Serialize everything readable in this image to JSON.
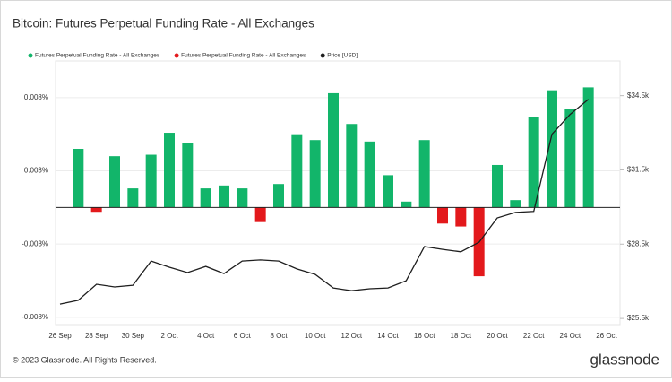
{
  "chart_data": {
    "type": "bar",
    "title": "Bitcoin: Futures Perpetual Funding Rate - All Exchanges",
    "footer": "© 2023 Glassnode. All Rights Reserved.",
    "brand": "glassnode",
    "categories": [
      "26 Sep",
      null,
      "28 Sep",
      null,
      "30 Sep",
      null,
      "2 Oct",
      null,
      "4 Oct",
      null,
      "6 Oct",
      null,
      "8 Oct",
      null,
      "10 Oct",
      null,
      "12 Oct",
      null,
      "14 Oct",
      null,
      "16 Oct",
      null,
      "18 Oct",
      null,
      "20 Oct",
      null,
      "22 Oct",
      null,
      "24 Oct",
      null,
      "26 Oct"
    ],
    "series": [
      {
        "name": "Futures Perpetual Funding Rate - All Exchanges",
        "type": "bar",
        "color": "#12b56a",
        "values": [
          null,
          0.004,
          null,
          0.0035,
          0.0013,
          0.0036,
          0.0051,
          0.0044,
          0.0013,
          0.0015,
          0.0013,
          null,
          0.0016,
          0.005,
          0.0046,
          0.0078,
          0.0057,
          0.0045,
          0.0022,
          0.0004,
          0.0046,
          null,
          null,
          null,
          0.0029,
          0.0005,
          0.0062,
          0.008,
          0.0067,
          0.0082,
          null
        ]
      },
      {
        "name": "Futures Perpetual Funding Rate - All Exchanges",
        "type": "bar",
        "color": "#e3191c",
        "values": [
          null,
          null,
          -0.0003,
          null,
          null,
          null,
          null,
          null,
          null,
          null,
          null,
          -0.001,
          null,
          null,
          null,
          null,
          null,
          null,
          null,
          null,
          null,
          -0.0011,
          -0.0013,
          -0.0047,
          null,
          null,
          null,
          null,
          null,
          null,
          null
        ]
      },
      {
        "name": "Price [USD]",
        "type": "line",
        "axis": "y2",
        "color": "#1e1e1e",
        "values": [
          26080,
          26230,
          26880,
          26770,
          26840,
          27820,
          27570,
          27350,
          27600,
          27310,
          27820,
          27860,
          27820,
          27500,
          27280,
          26730,
          26620,
          26700,
          26730,
          27020,
          28400,
          28290,
          28190,
          28580,
          29560,
          29780,
          29820,
          32940,
          33740,
          34350,
          null
        ]
      }
    ],
    "ylim": [
      -0.008,
      0.01
    ],
    "yticks": [
      {
        "value": -0.0075,
        "label": "-0.008%"
      },
      {
        "value": -0.0025,
        "label": "-0.003%"
      },
      {
        "value": 0.0025,
        "label": "0.003%"
      },
      {
        "value": 0.0075,
        "label": "0.008%"
      }
    ],
    "y2lim": [
      25250,
      35900
    ],
    "y2ticks": [
      {
        "value": 25500,
        "label": "$25.5k"
      },
      {
        "value": 28500,
        "label": "$28.5k"
      },
      {
        "value": 31500,
        "label": "$31.5k"
      },
      {
        "value": 34500,
        "label": "$34.5k"
      }
    ],
    "grid": true
  }
}
